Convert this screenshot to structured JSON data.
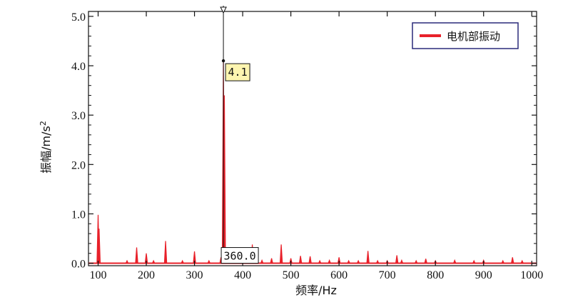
{
  "chart_data": {
    "type": "line",
    "title": "",
    "xlabel": "频率/Hz",
    "ylabel_main": "振幅/m/s",
    "ylabel_sup": "2",
    "xlim": [
      80,
      1010
    ],
    "ylim": [
      -0.05,
      5.1
    ],
    "xticks": [
      100,
      200,
      300,
      400,
      500,
      600,
      700,
      800,
      900,
      1000
    ],
    "xtick_labels": [
      "100",
      "200",
      "300",
      "400",
      "500",
      "600",
      "700",
      "800",
      "900",
      "1000"
    ],
    "yticks": [
      0.0,
      1.0,
      2.0,
      3.0,
      4.0,
      5.0
    ],
    "ytick_labels": [
      "0.0",
      "1.0",
      "2.0",
      "3.0",
      "4.0",
      "5.0"
    ],
    "grid": false,
    "legend": {
      "position": "top-right",
      "entries": [
        {
          "label": "电机部振动",
          "color": "#e8212a"
        }
      ]
    },
    "series": [
      {
        "name": "电机部振动",
        "color": "#e8212a",
        "peaks": [
          {
            "x": 100,
            "y": 0.98
          },
          {
            "x": 102,
            "y": 0.7
          },
          {
            "x": 160,
            "y": 0.05
          },
          {
            "x": 180,
            "y": 0.32
          },
          {
            "x": 200,
            "y": 0.2
          },
          {
            "x": 215,
            "y": 0.05
          },
          {
            "x": 240,
            "y": 0.45
          },
          {
            "x": 275,
            "y": 0.05
          },
          {
            "x": 300,
            "y": 0.24
          },
          {
            "x": 330,
            "y": 0.05
          },
          {
            "x": 355,
            "y": 0.12
          },
          {
            "x": 360,
            "y": 4.1
          },
          {
            "x": 362,
            "y": 3.4
          },
          {
            "x": 380,
            "y": 0.08
          },
          {
            "x": 400,
            "y": 0.06
          },
          {
            "x": 420,
            "y": 0.38
          },
          {
            "x": 440,
            "y": 0.06
          },
          {
            "x": 460,
            "y": 0.1
          },
          {
            "x": 480,
            "y": 0.38
          },
          {
            "x": 500,
            "y": 0.1
          },
          {
            "x": 520,
            "y": 0.15
          },
          {
            "x": 540,
            "y": 0.14
          },
          {
            "x": 560,
            "y": 0.05
          },
          {
            "x": 580,
            "y": 0.06
          },
          {
            "x": 600,
            "y": 0.12
          },
          {
            "x": 620,
            "y": 0.05
          },
          {
            "x": 640,
            "y": 0.05
          },
          {
            "x": 660,
            "y": 0.25
          },
          {
            "x": 680,
            "y": 0.05
          },
          {
            "x": 700,
            "y": 0.05
          },
          {
            "x": 720,
            "y": 0.16
          },
          {
            "x": 730,
            "y": 0.06
          },
          {
            "x": 760,
            "y": 0.05
          },
          {
            "x": 780,
            "y": 0.09
          },
          {
            "x": 800,
            "y": 0.05
          },
          {
            "x": 840,
            "y": 0.06
          },
          {
            "x": 880,
            "y": 0.05
          },
          {
            "x": 900,
            "y": 0.06
          },
          {
            "x": 940,
            "y": 0.05
          },
          {
            "x": 960,
            "y": 0.12
          },
          {
            "x": 980,
            "y": 0.05
          }
        ]
      }
    ],
    "annotations": {
      "peak_x": 360,
      "peak_y": 4.1,
      "peak_value_label": "4.1",
      "peak_freq_label": "360.0",
      "value_box_color": "#fdf5b0"
    }
  }
}
